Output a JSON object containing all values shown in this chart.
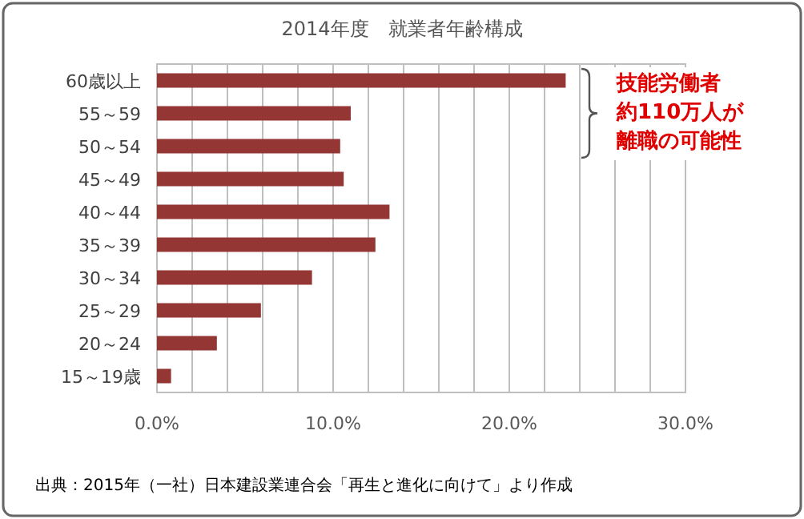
{
  "chart_data": {
    "type": "bar",
    "orientation": "horizontal",
    "title": "2014年度　就業者年齢構成",
    "categories": [
      "60歳以上",
      "55～59",
      "50～54",
      "45～49",
      "40～44",
      "35～39",
      "30～34",
      "25～29",
      "20～24",
      "15～19歳"
    ],
    "values": [
      23.2,
      11.0,
      10.4,
      10.6,
      13.2,
      12.4,
      8.8,
      5.9,
      3.4,
      0.8
    ],
    "color": "#943634",
    "xlim": [
      0,
      30
    ],
    "xticks": [
      {
        "value": 0,
        "label": "0.0%"
      },
      {
        "value": 2,
        "label": null
      },
      {
        "value": 4,
        "label": null
      },
      {
        "value": 6,
        "label": null
      },
      {
        "value": 8,
        "label": null
      },
      {
        "value": 10,
        "label": "10.0%"
      },
      {
        "value": 12,
        "label": null
      },
      {
        "value": 14,
        "label": null
      },
      {
        "value": 16,
        "label": null
      },
      {
        "value": 18,
        "label": null
      },
      {
        "value": 20,
        "label": "20.0%"
      },
      {
        "value": 22,
        "label": null
      },
      {
        "value": 24,
        "label": null
      },
      {
        "value": 26,
        "label": null
      },
      {
        "value": 28,
        "label": null
      },
      {
        "value": 30,
        "label": "30.0%"
      }
    ],
    "grid": "x",
    "annotations": [
      "技能労働者",
      "約110万人が",
      "離職の可能性",
      "出典：2015年（一社）日本建設業連合会「再生と進化に向けて」より作成"
    ]
  }
}
